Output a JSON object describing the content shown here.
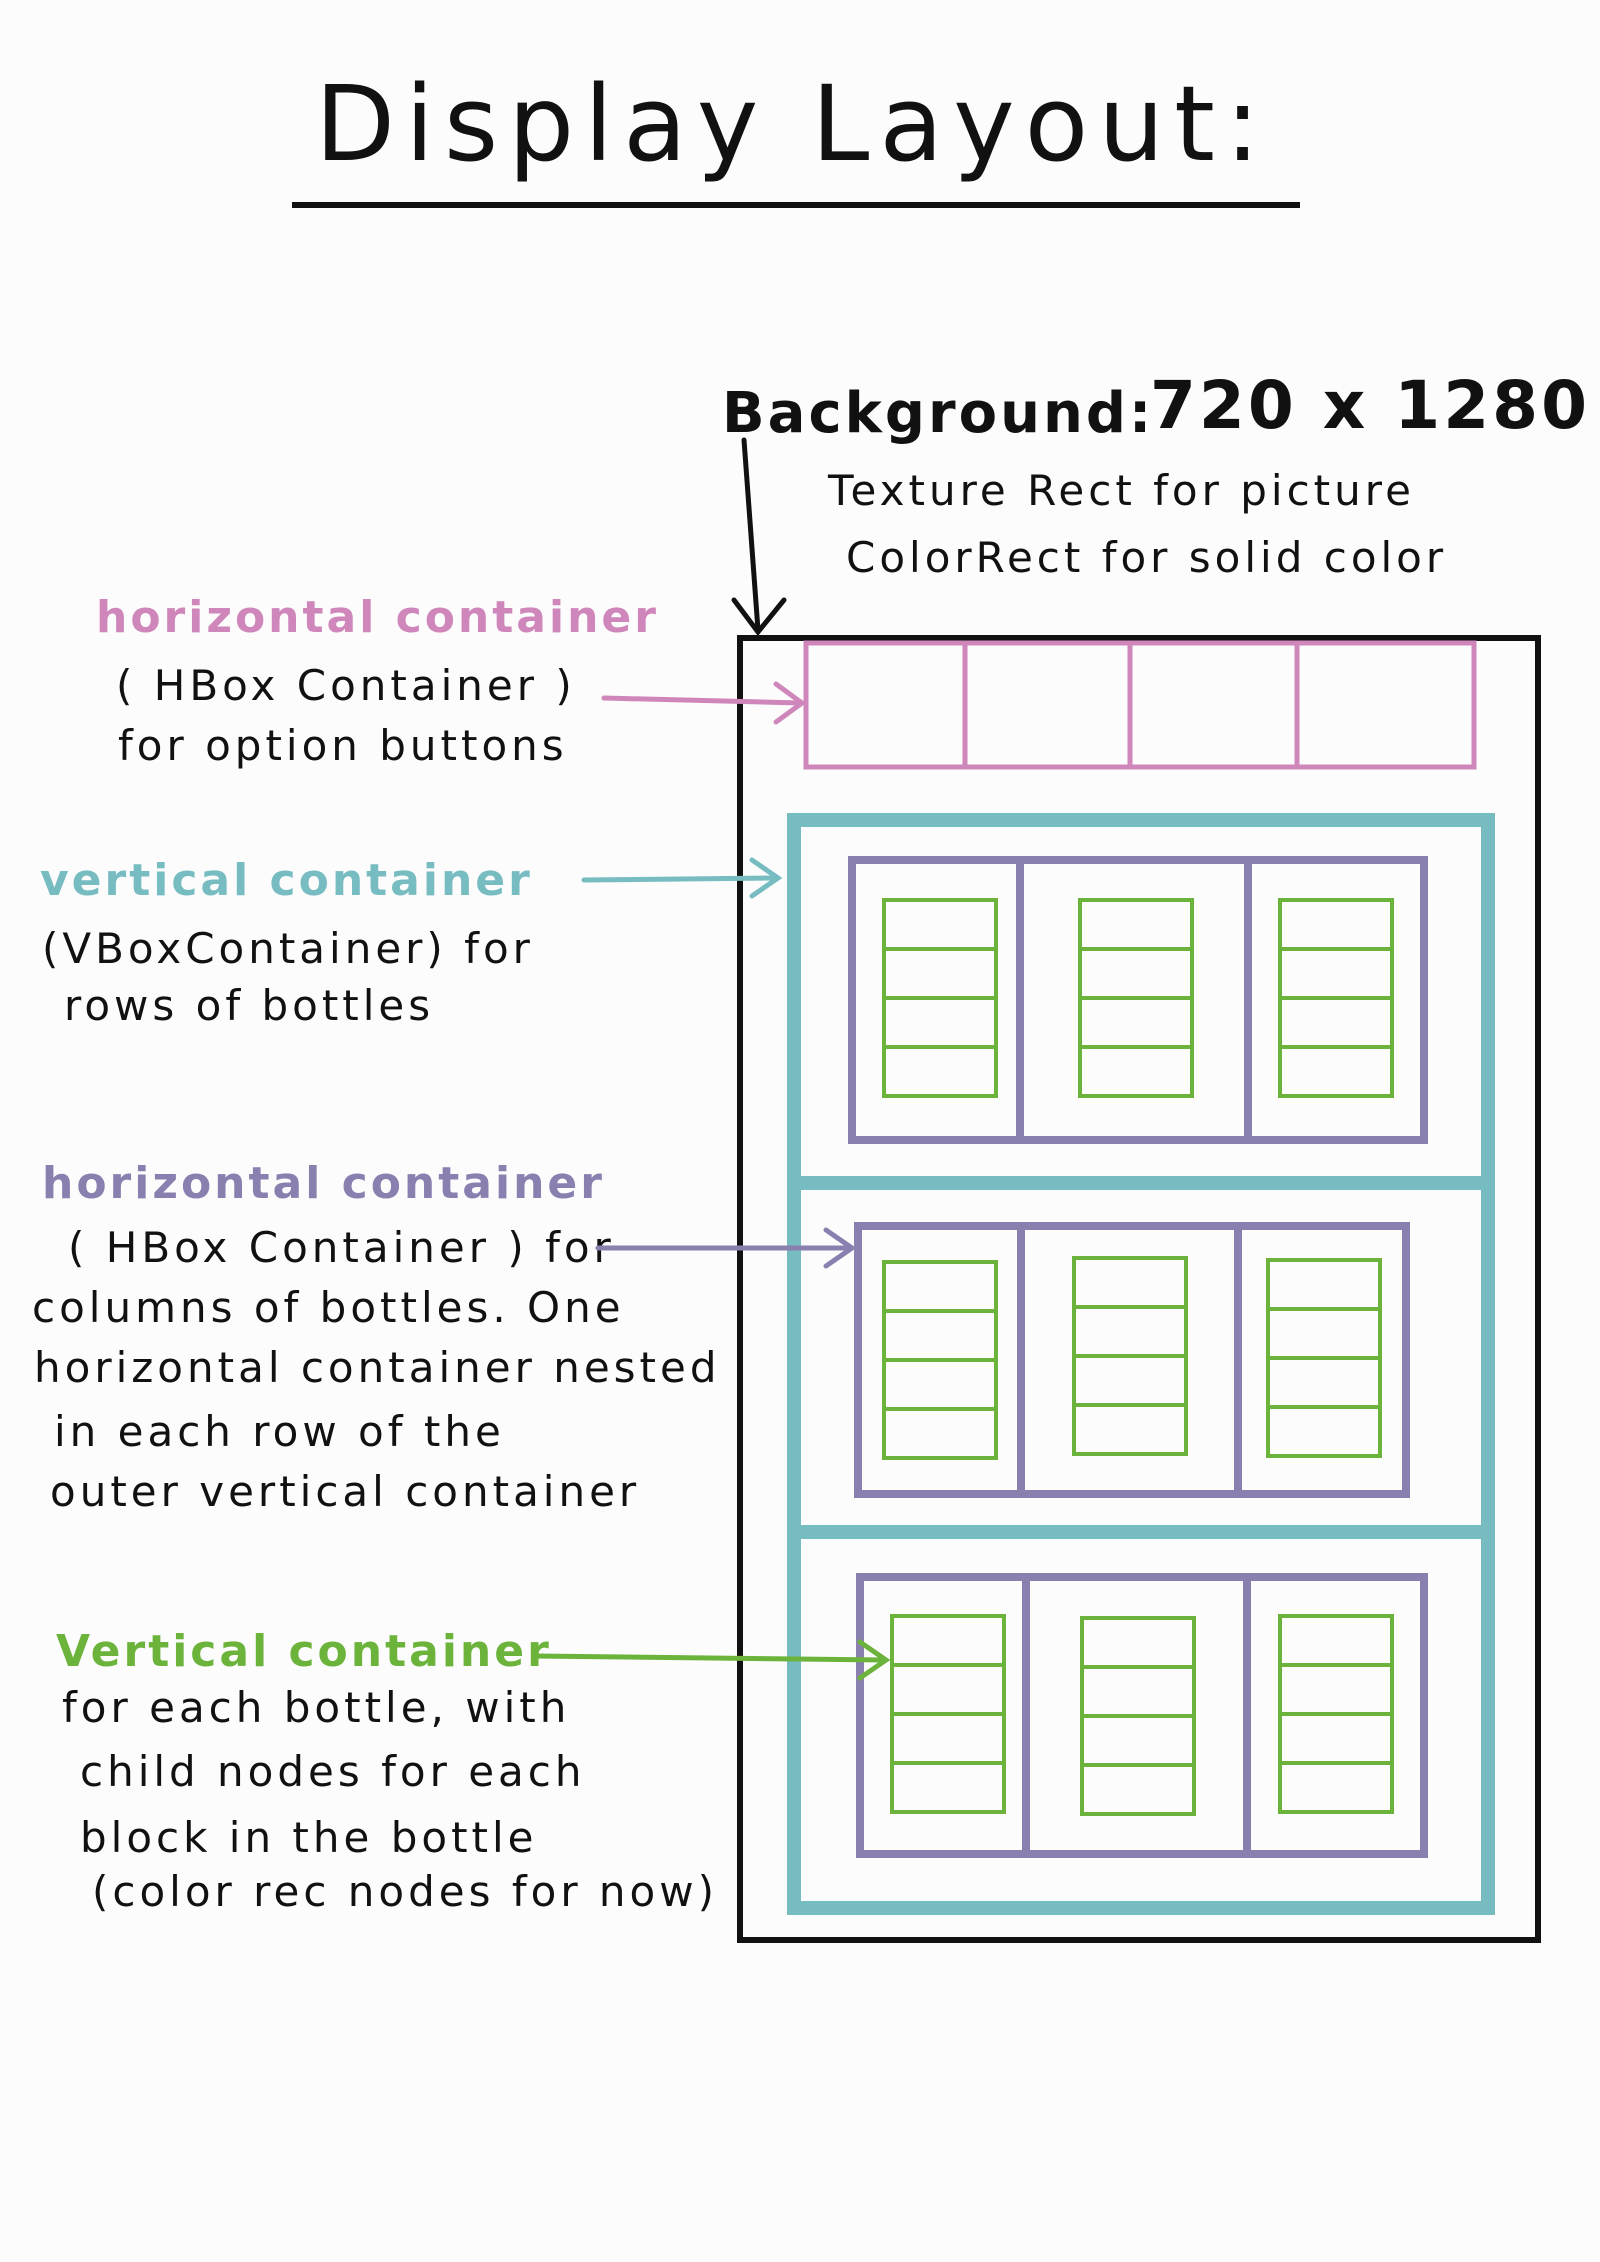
{
  "title": "Display Layout:",
  "background": {
    "label": "Background:",
    "size": "720 x 1280",
    "note_line1": "Texture Rect for picture",
    "note_line2": "ColorRect for solid color"
  },
  "annotations": {
    "option_bar": {
      "heading": "horizontal container",
      "lines": [
        "( HBox Container )",
        "for option buttons"
      ]
    },
    "rows": {
      "heading": "vertical container",
      "lines": [
        "(VBoxContainer) for",
        "rows of bottles"
      ]
    },
    "columns": {
      "heading": "horizontal container",
      "lines": [
        "( HBox Container ) for",
        "columns of bottles. One",
        "horizontal container nested",
        "in each row of the",
        "outer vertical container"
      ]
    },
    "bottle": {
      "heading": "Vertical container",
      "lines": [
        "for each bottle, with",
        "child nodes for each",
        "block in the bottle",
        "(color rec nodes for now)"
      ]
    }
  },
  "colors": {
    "ink": "#111111",
    "option_bar": "#cf86bb",
    "rows": "#77bcc1",
    "columns": "#8a80b0",
    "bottle": "#6bb33b"
  }
}
